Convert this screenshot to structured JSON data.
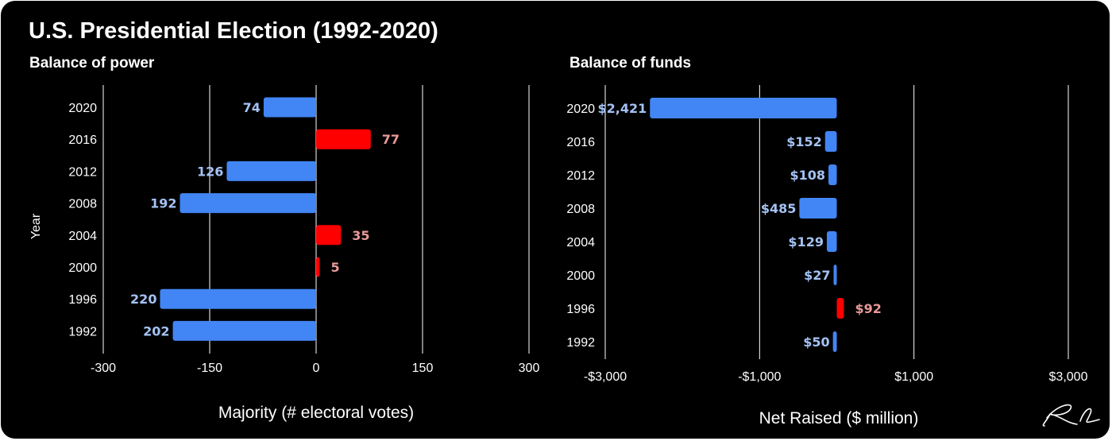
{
  "header": {
    "title": "U.S. Presidential Election (1992-2020)",
    "signature": "Ri"
  },
  "colors": {
    "background": "#000000",
    "text": "#ffffff",
    "grid": "#ffffff",
    "blue_bar": "#4285f4",
    "red_bar": "#ff0000",
    "blue_label": "#a4c2f4",
    "red_label": "#ea9999"
  },
  "chart_data": [
    {
      "type": "bar",
      "orientation": "horizontal",
      "title": "Balance of power",
      "xlabel": "Majority (# electoral votes)",
      "ylabel": "Year",
      "xlim": [
        -300,
        300
      ],
      "xticks": [
        -300,
        -150,
        0,
        150,
        300
      ],
      "xtick_labels": [
        "-300",
        "-150",
        "0",
        "150",
        "300"
      ],
      "grid": true,
      "categories": [
        "2020",
        "2016",
        "2012",
        "2008",
        "2004",
        "2000",
        "1996",
        "1992"
      ],
      "values": [
        -74,
        77,
        -126,
        -192,
        35,
        5,
        -220,
        -202
      ],
      "labels": [
        "74",
        "77",
        "126",
        "192",
        "35",
        "5",
        "220",
        "202"
      ]
    },
    {
      "type": "bar",
      "orientation": "horizontal",
      "title": "Balance of funds",
      "xlabel": "Net Raised ($ million)",
      "ylabel": "",
      "xlim": [
        -3000,
        3000
      ],
      "xticks": [
        -3000,
        -1000,
        1000,
        3000
      ],
      "xtick_labels": [
        "-$3,000",
        "-$1,000",
        "$1,000",
        "$3,000"
      ],
      "grid": true,
      "categories": [
        "2020",
        "2016",
        "2012",
        "2008",
        "2004",
        "2000",
        "1996",
        "1992"
      ],
      "values": [
        -2421,
        -152,
        -108,
        -485,
        -129,
        -27,
        92,
        -50
      ],
      "labels": [
        "$2,421",
        "$152",
        "$108",
        "$485",
        "$129",
        "$27",
        "$92",
        "$50"
      ]
    }
  ]
}
